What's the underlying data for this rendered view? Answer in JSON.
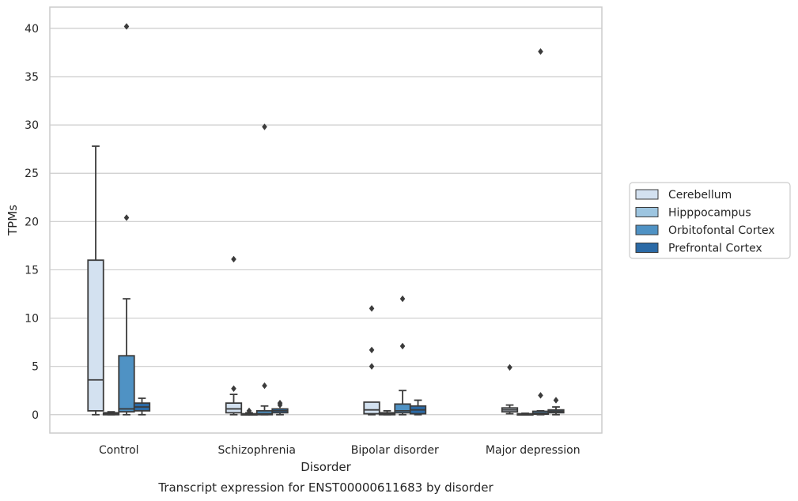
{
  "chart_data": {
    "type": "box",
    "title": "Transcript expression for ENST00000611683 by disorder",
    "xlabel": "Disorder",
    "ylabel": "TPMs",
    "ylim": [
      -1.9,
      42.2
    ],
    "yticks": [
      0,
      5,
      10,
      15,
      20,
      25,
      30,
      35,
      40
    ],
    "grid": "horizontal",
    "legend_position": "right",
    "categories": [
      "Control",
      "Schizophrenia",
      "Bipolar disorder",
      "Major depression"
    ],
    "series": [
      {
        "name": "Cerebellum",
        "color": "#d3e1f0",
        "boxes": [
          {
            "whislo": 0,
            "q1": 0.4,
            "med": 3.6,
            "q3": 16.0,
            "whishi": 27.8,
            "fliers": []
          },
          {
            "whislo": 0,
            "q1": 0.2,
            "med": 0.6,
            "q3": 1.2,
            "whishi": 2.1,
            "fliers": [
              2.7,
              16.1
            ]
          },
          {
            "whislo": 0,
            "q1": 0.1,
            "med": 0.5,
            "q3": 1.3,
            "whishi": 1.3,
            "fliers": [
              5.0,
              6.7,
              11.0
            ]
          },
          {
            "whislo": 0.1,
            "q1": 0.3,
            "med": 0.5,
            "q3": 0.7,
            "whishi": 1.0,
            "fliers": [
              4.9
            ]
          }
        ]
      },
      {
        "name": "Hipppocampus",
        "color": "#9dc5e0",
        "boxes": [
          {
            "whislo": 0,
            "q1": 0,
            "med": 0.1,
            "q3": 0.2,
            "whishi": 0.3,
            "fliers": []
          },
          {
            "whislo": 0,
            "q1": 0,
            "med": 0.05,
            "q3": 0.1,
            "whishi": 0.2,
            "fliers": [
              0.2,
              0.4
            ]
          },
          {
            "whislo": 0,
            "q1": 0,
            "med": 0.1,
            "q3": 0.2,
            "whishi": 0.4,
            "fliers": []
          },
          {
            "whislo": 0,
            "q1": 0,
            "med": 0.05,
            "q3": 0.1,
            "whishi": 0.15,
            "fliers": []
          }
        ]
      },
      {
        "name": "Orbitofontal Cortex",
        "color": "#4f92c4",
        "boxes": [
          {
            "whislo": 0,
            "q1": 0.3,
            "med": 0.6,
            "q3": 6.1,
            "whishi": 12.0,
            "fliers": [
              20.4,
              40.2
            ]
          },
          {
            "whislo": 0,
            "q1": 0,
            "med": 0.1,
            "q3": 0.4,
            "whishi": 0.9,
            "fliers": [
              3.0,
              29.8
            ]
          },
          {
            "whislo": 0,
            "q1": 0.2,
            "med": 0.4,
            "q3": 1.1,
            "whishi": 2.5,
            "fliers": [
              7.1,
              12.0
            ]
          },
          {
            "whislo": 0,
            "q1": 0.05,
            "med": 0.15,
            "q3": 0.35,
            "whishi": 0.4,
            "fliers": [
              2.0,
              37.6
            ]
          }
        ]
      },
      {
        "name": "Prefrontal Cortex",
        "color": "#2b6aa6",
        "boxes": [
          {
            "whislo": 0,
            "q1": 0.4,
            "med": 0.8,
            "q3": 1.2,
            "whishi": 1.7,
            "fliers": []
          },
          {
            "whislo": 0,
            "q1": 0.2,
            "med": 0.4,
            "q3": 0.6,
            "whishi": 0.6,
            "fliers": [
              1.0,
              1.2
            ]
          },
          {
            "whislo": 0,
            "q1": 0.1,
            "med": 0.5,
            "q3": 0.9,
            "whishi": 1.5,
            "fliers": []
          },
          {
            "whislo": 0,
            "q1": 0.2,
            "med": 0.35,
            "q3": 0.5,
            "whishi": 0.8,
            "fliers": [
              1.5
            ]
          }
        ]
      }
    ]
  }
}
